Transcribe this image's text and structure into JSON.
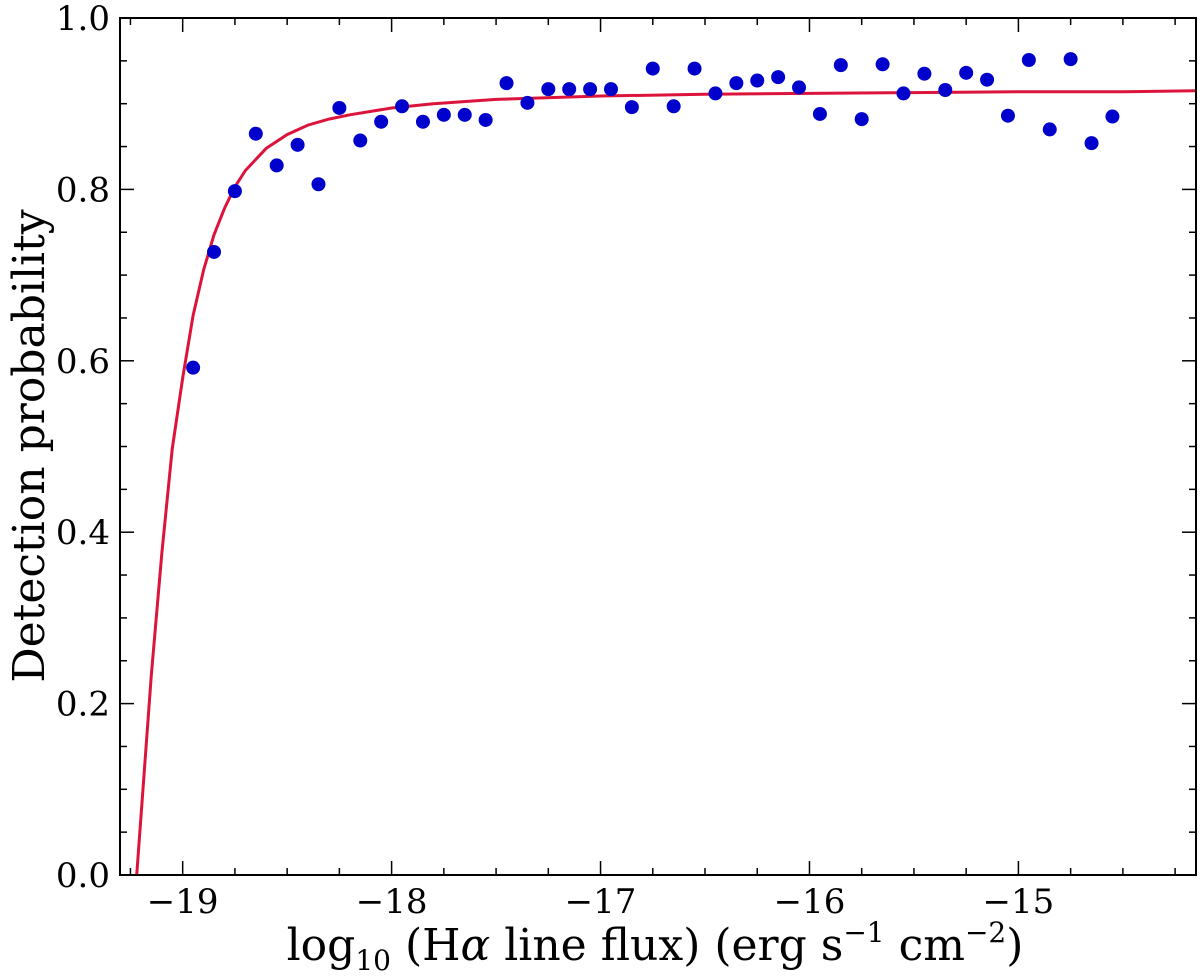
{
  "chart_data": {
    "type": "scatter",
    "xlabel": {
      "prefix": "log",
      "sub": "10",
      "middle": " (H",
      "alpha": "α",
      "rest": " line flux) (erg s",
      "sup1": "−1",
      "rest2": " cm",
      "sup2": "−2",
      "end": ")"
    },
    "ylabel": "Detection probability",
    "xlim": [
      -19.3,
      -14.15
    ],
    "ylim": [
      0.0,
      1.0
    ],
    "x_ticks": [
      -19,
      -18,
      -17,
      -16,
      -15
    ],
    "x_tick_labels": [
      "−19",
      "−18",
      "−17",
      "−16",
      "−15"
    ],
    "y_ticks": [
      0.0,
      0.2,
      0.4,
      0.6,
      0.8,
      1.0
    ],
    "y_tick_labels": [
      "0.0",
      "0.2",
      "0.4",
      "0.6",
      "0.8",
      "1.0"
    ],
    "grid": false,
    "colors": {
      "points": "#0000cc",
      "fit": "#dc143c"
    },
    "series": [
      {
        "kind": "scatter",
        "x": [
          -18.95,
          -18.85,
          -18.75,
          -18.65,
          -18.55,
          -18.45,
          -18.35,
          -18.25,
          -18.15,
          -18.05,
          -17.95,
          -17.85,
          -17.75,
          -17.65,
          -17.55,
          -17.45,
          -17.35,
          -17.25,
          -17.15,
          -17.05,
          -16.95,
          -16.85,
          -16.75,
          -16.65,
          -16.55,
          -16.45,
          -16.35,
          -16.25,
          -16.15,
          -16.05,
          -15.95,
          -15.85,
          -15.75,
          -15.65,
          -15.55,
          -15.45,
          -15.35,
          -15.25,
          -15.15,
          -15.05,
          -14.95,
          -14.85,
          -14.75,
          -14.65,
          -14.55
        ],
        "y": [
          0.592,
          0.727,
          0.798,
          0.865,
          0.828,
          0.852,
          0.806,
          0.895,
          0.857,
          0.879,
          0.897,
          0.879,
          0.887,
          0.887,
          0.881,
          0.924,
          0.901,
          0.917,
          0.917,
          0.917,
          0.917,
          0.896,
          0.941,
          0.897,
          0.941,
          0.912,
          0.924,
          0.927,
          0.931,
          0.919,
          0.888,
          0.945,
          0.882,
          0.946,
          0.912,
          0.935,
          0.916,
          0.936,
          0.928,
          0.886,
          0.951,
          0.87,
          0.952,
          0.854,
          0.885
        ]
      },
      {
        "kind": "line",
        "x": [
          -19.22,
          -19.15,
          -19.1,
          -19.05,
          -19.0,
          -18.95,
          -18.9,
          -18.85,
          -18.8,
          -18.75,
          -18.7,
          -18.6,
          -18.5,
          -18.4,
          -18.3,
          -18.2,
          -18.0,
          -17.8,
          -17.5,
          -17.0,
          -16.5,
          -16.0,
          -15.5,
          -15.0,
          -14.5,
          -14.15
        ],
        "y": [
          0.0,
          0.233,
          0.375,
          0.497,
          0.58,
          0.653,
          0.706,
          0.747,
          0.778,
          0.803,
          0.822,
          0.848,
          0.864,
          0.875,
          0.882,
          0.887,
          0.895,
          0.9,
          0.905,
          0.909,
          0.911,
          0.912,
          0.913,
          0.914,
          0.914,
          0.915
        ]
      }
    ]
  }
}
